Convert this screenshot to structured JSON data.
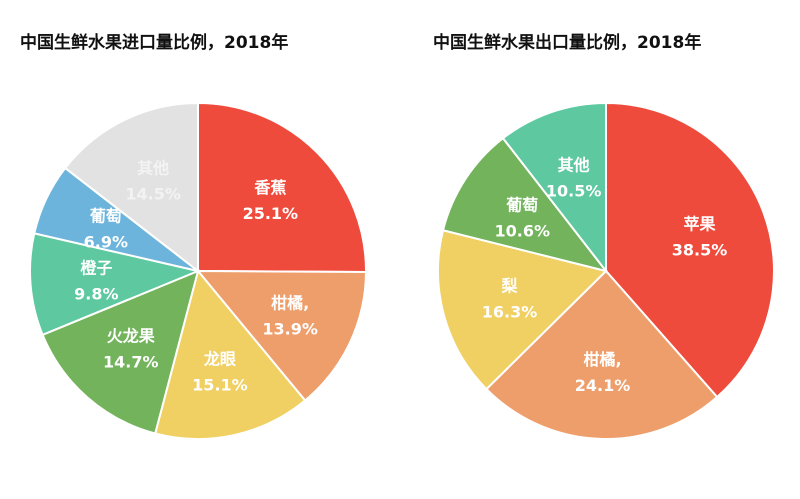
{
  "chart_data": [
    {
      "type": "pie",
      "title": "中国生鲜水果进口量比例，2018年",
      "slices": [
        {
          "name": "香蕉",
          "value": 25.1,
          "label": "25.1%",
          "color": "#ef4b3c"
        },
        {
          "name": "柑橘,",
          "value": 13.9,
          "label": "13.9%",
          "color": "#ee9e6b"
        },
        {
          "name": "龙眼",
          "value": 15.1,
          "label": "15.1%",
          "color": "#f0d062"
        },
        {
          "name": "火龙果",
          "value": 14.7,
          "label": "14.7%",
          "color": "#72b35c"
        },
        {
          "name": "橙子",
          "value": 9.8,
          "label": "9.8%",
          "color": "#5ec8a0"
        },
        {
          "name": "葡萄",
          "value": 6.9,
          "label": "6.9%",
          "color": "#6db4dc"
        },
        {
          "name": "其他",
          "value": 14.5,
          "label": "14.5%",
          "color": "#e2e2e2"
        }
      ]
    },
    {
      "type": "pie",
      "title": "中国生鲜水果出口量比例，2018年",
      "slices": [
        {
          "name": "苹果",
          "value": 38.5,
          "label": "38.5%",
          "color": "#ef4b3c"
        },
        {
          "name": "柑橘,",
          "value": 24.1,
          "label": "24.1%",
          "color": "#ee9e6b"
        },
        {
          "name": "梨",
          "value": 16.3,
          "label": "16.3%",
          "color": "#f0d062"
        },
        {
          "name": "葡萄",
          "value": 10.6,
          "label": "10.6%",
          "color": "#72b35c"
        },
        {
          "name": "其他",
          "value": 10.5,
          "label": "10.5%",
          "color": "#5ec8a0"
        }
      ]
    }
  ]
}
